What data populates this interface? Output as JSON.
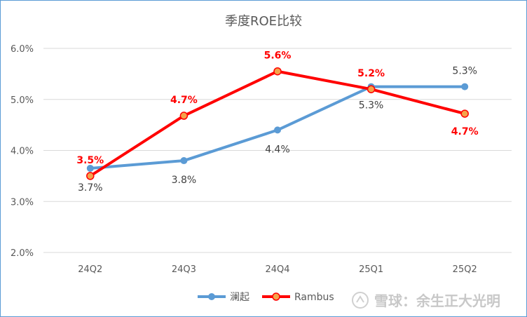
{
  "chart_data": {
    "type": "line",
    "title": "季度ROE比较",
    "categories": [
      "24Q2",
      "24Q3",
      "24Q4",
      "25Q1",
      "25Q2"
    ],
    "ylim": [
      0.02,
      0.06
    ],
    "yticks": [
      "2.0%",
      "3.0%",
      "4.0%",
      "5.0%",
      "6.0%"
    ],
    "grid": true,
    "legend_position": "bottom",
    "series": [
      {
        "name": "澜起",
        "color": "#5b9bd5",
        "values": [
          0.0365,
          0.038,
          0.044,
          0.0525,
          0.0525
        ],
        "labels": [
          "3.7%",
          "3.8%",
          "4.4%",
          "5.3%",
          "5.3%"
        ]
      },
      {
        "name": "Rambus",
        "color": "#ff0000",
        "values": [
          0.035,
          0.0468,
          0.0555,
          0.052,
          0.0472
        ],
        "labels": [
          "3.5%",
          "4.7%",
          "5.6%",
          "5.2%",
          "4.7%"
        ]
      }
    ]
  },
  "watermark": "雪球：余生正大光明"
}
